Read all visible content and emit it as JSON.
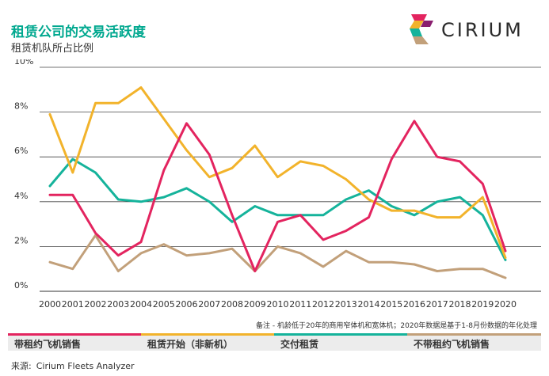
{
  "title": "租赁公司的交易活跃度",
  "subtitle": "租赁机队所占比例",
  "logo": {
    "text": "CIRIUM",
    "icon": "cirium-logo-icon"
  },
  "note": "备注 - 机龄低于20年的商用窄体机和宽体机；2020年数据是基于1-8月份数据的年化处理",
  "source": {
    "label": "来源:",
    "text": "Cirium Fleets Analyzer"
  },
  "colors": {
    "pink": "#e3245f",
    "gold": "#f2b32b",
    "teal": "#15b39b",
    "tan": "#c2a07a",
    "title": "#00a88f"
  },
  "chart_data": {
    "type": "line",
    "x": [
      2000,
      2001,
      2002,
      2003,
      2004,
      2005,
      2006,
      2007,
      2008,
      2009,
      2010,
      2011,
      2012,
      2013,
      2014,
      2015,
      2016,
      2017,
      2018,
      2019,
      2020
    ],
    "ylim": [
      0,
      10
    ],
    "yticks": [
      "0%",
      "2%",
      "4%",
      "6%",
      "8%",
      "10%"
    ],
    "grid": true,
    "series": [
      {
        "name": "带租约飞机销售",
        "color": "#e3245f",
        "values": [
          4.3,
          4.3,
          2.6,
          1.6,
          2.2,
          5.4,
          7.5,
          6.1,
          3.4,
          0.9,
          3.1,
          3.4,
          2.3,
          2.7,
          3.3,
          5.9,
          7.6,
          6.0,
          5.8,
          4.8,
          1.8
        ]
      },
      {
        "name": "租赁开始（非新机）",
        "color": "#f2b32b",
        "values": [
          7.9,
          5.3,
          8.4,
          8.4,
          9.1,
          7.7,
          6.3,
          5.1,
          5.5,
          6.5,
          5.1,
          5.8,
          5.6,
          5.0,
          4.1,
          3.6,
          3.6,
          3.3,
          3.3,
          4.2,
          1.5
        ]
      },
      {
        "name": "交付租赁",
        "color": "#15b39b",
        "values": [
          4.7,
          5.9,
          5.3,
          4.1,
          4.0,
          4.2,
          4.6,
          4.0,
          3.1,
          3.8,
          3.4,
          3.4,
          3.4,
          4.1,
          4.5,
          3.8,
          3.4,
          4.0,
          4.2,
          3.4,
          1.4
        ]
      },
      {
        "name": "不带租约飞机销售",
        "color": "#c2a07a",
        "values": [
          1.3,
          1.0,
          2.5,
          0.9,
          1.7,
          2.1,
          1.6,
          1.7,
          1.9,
          0.9,
          2.0,
          1.7,
          1.1,
          1.8,
          1.3,
          1.3,
          1.2,
          0.9,
          1.0,
          1.0,
          0.6
        ]
      }
    ]
  }
}
